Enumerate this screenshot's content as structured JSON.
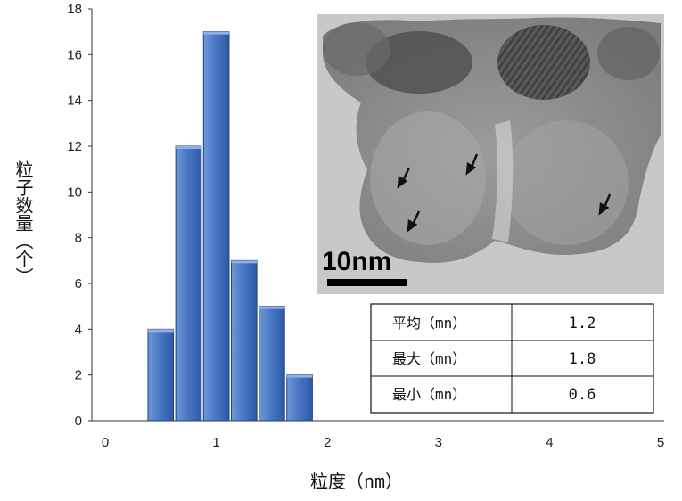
{
  "chart_data": {
    "type": "bar",
    "xlabel": "粒度（nm）",
    "ylabel": "粒子数量（个）",
    "xlim": [
      0,
      5
    ],
    "ylim": [
      0,
      18
    ],
    "x_ticks": [
      "0",
      "1",
      "2",
      "3",
      "4",
      "5"
    ],
    "y_ticks": [
      "0",
      "2",
      "4",
      "6",
      "8",
      "10",
      "12",
      "14",
      "16",
      "18"
    ],
    "grid": false,
    "legend": "none",
    "x": [
      0.5,
      0.75,
      1.0,
      1.25,
      1.5,
      1.75
    ],
    "values": [
      4,
      12,
      17,
      7,
      5,
      2
    ],
    "bar_color": "#4a78c4"
  },
  "inset_image": {
    "scale_label": "10nm"
  },
  "stats_table": {
    "rows": [
      {
        "label": "平均（mn）",
        "value": "1.2"
      },
      {
        "label": "最大（mn）",
        "value": "1.8"
      },
      {
        "label": "最小（mn）",
        "value": "0.6"
      }
    ]
  }
}
